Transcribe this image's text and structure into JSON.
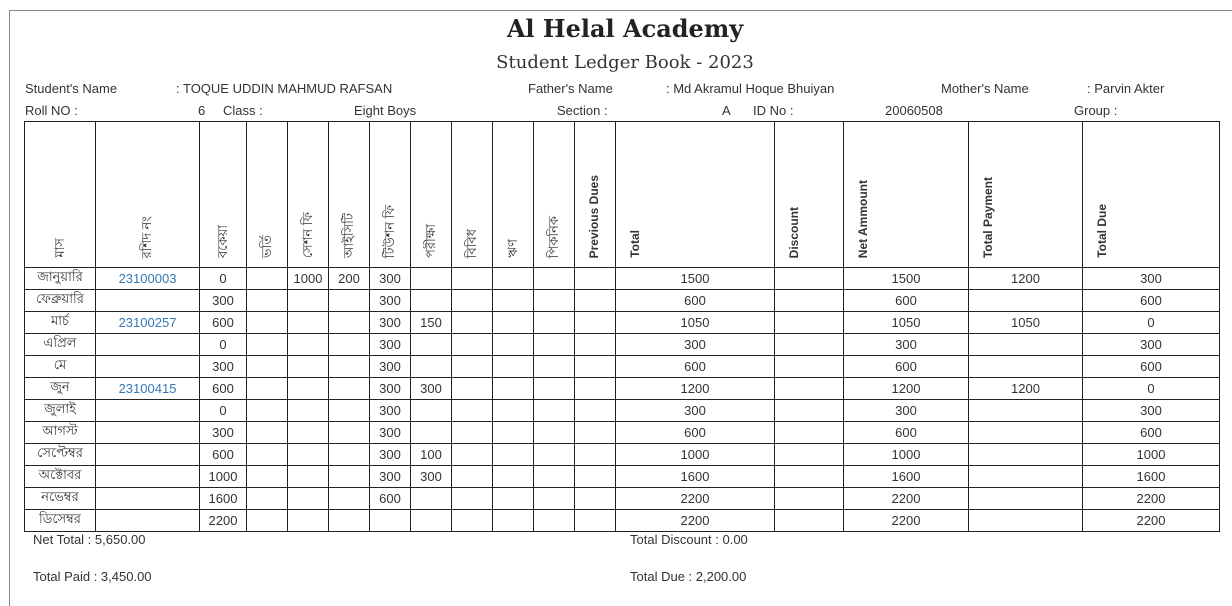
{
  "header": {
    "title": "Al Helal Academy",
    "subtitle": "Student Ledger Book - 2023"
  },
  "student": {
    "name_label": "Student's Name",
    ":": ":",
    "name": ": TOQUE UDDIN MAHMUD RAFSAN",
    "father_label": "Father's Name",
    "father": ": Md Akramul Hoque Bhuiyan",
    "mother_label": "Mother's Name",
    "mother": ":  Parvin Akter",
    "roll_label": "Roll NO :",
    "roll": "6",
    "class_label": "Class :",
    "class": "Eight Boys",
    "section_label": "Section :",
    "section": "A",
    "id_label": "ID No :",
    "id": "20060508",
    "group_label": "Group :"
  },
  "columns": [
    "মাস",
    "রশিদ নং",
    "বকেয়া",
    "ভর্তি",
    "সেশন ফি",
    "আইসিটি",
    "টিউশন ফি",
    "পরীক্ষা",
    "বিবিধ",
    "ঋণ",
    "পিকনিক",
    "Previous Dues",
    "Total",
    "Discount",
    "Net Ammount",
    "Total Payment",
    "Total Due"
  ],
  "rows": [
    [
      "জানুয়ারি",
      "23100003",
      "0",
      "",
      "1000",
      "200",
      "300",
      "",
      "",
      "",
      "",
      "",
      "1500",
      "",
      "1500",
      "1200",
      "300"
    ],
    [
      "ফেব্রুয়ারি",
      "",
      "300",
      "",
      "",
      "",
      "300",
      "",
      "",
      "",
      "",
      "",
      "600",
      "",
      "600",
      "",
      "600"
    ],
    [
      "মার্চ",
      "23100257",
      "600",
      "",
      "",
      "",
      "300",
      "150",
      "",
      "",
      "",
      "",
      "1050",
      "",
      "1050",
      "1050",
      "0"
    ],
    [
      "এপ্রিল",
      "",
      "0",
      "",
      "",
      "",
      "300",
      "",
      "",
      "",
      "",
      "",
      "300",
      "",
      "300",
      "",
      "300"
    ],
    [
      "মে",
      "",
      "300",
      "",
      "",
      "",
      "300",
      "",
      "",
      "",
      "",
      "",
      "600",
      "",
      "600",
      "",
      "600"
    ],
    [
      "জুন",
      "23100415",
      "600",
      "",
      "",
      "",
      "300",
      "300",
      "",
      "",
      "",
      "",
      "1200",
      "",
      "1200",
      "1200",
      "0"
    ],
    [
      "জুলাই",
      "",
      "0",
      "",
      "",
      "",
      "300",
      "",
      "",
      "",
      "",
      "",
      "300",
      "",
      "300",
      "",
      "300"
    ],
    [
      "আগস্ট",
      "",
      "300",
      "",
      "",
      "",
      "300",
      "",
      "",
      "",
      "",
      "",
      "600",
      "",
      "600",
      "",
      "600"
    ],
    [
      "সেপ্টেম্বর",
      "",
      "600",
      "",
      "",
      "",
      "300",
      "100",
      "",
      "",
      "",
      "",
      "1000",
      "",
      "1000",
      "",
      "1000"
    ],
    [
      "অক্টোবর",
      "",
      "1000",
      "",
      "",
      "",
      "300",
      "300",
      "",
      "",
      "",
      "",
      "1600",
      "",
      "1600",
      "",
      "1600"
    ],
    [
      "নভেম্বর",
      "",
      "1600",
      "",
      "",
      "",
      "600",
      "",
      "",
      "",
      "",
      "",
      "2200",
      "",
      "2200",
      "",
      "2200"
    ],
    [
      "ডিসেম্বর",
      "",
      "2200",
      "",
      "",
      "",
      "",
      "",
      "",
      "",
      "",
      "",
      "2200",
      "",
      "2200",
      "",
      "2200"
    ]
  ],
  "summary": {
    "net_total": "Net Total : 5,650.00",
    "total_paid": "Total Paid : 3,450.00",
    "total_discount": "Total Discount : 0.00",
    "total_due": "Total Due : 2,200.00"
  }
}
